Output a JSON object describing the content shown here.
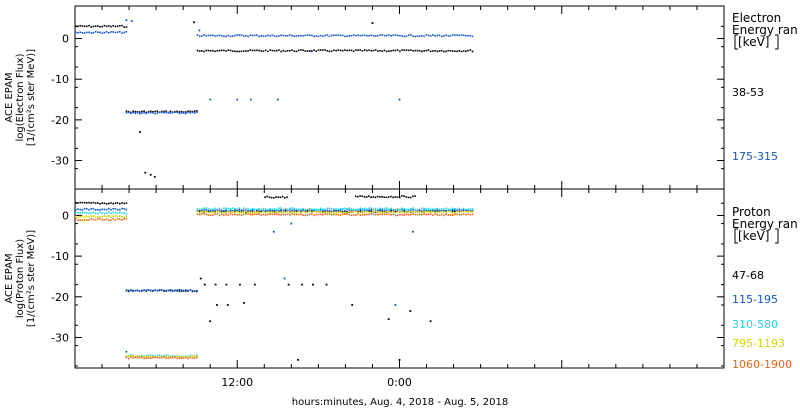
{
  "colors": {
    "frame": "#000000",
    "background": "#ffffff"
  },
  "time_axis": {
    "tick_labels": [
      "12:00",
      "0:00"
    ],
    "xlabel": "hours:minutes, Aug.  4, 2018 - Aug.  5, 2018"
  },
  "chart_data": [
    {
      "type": "scatter",
      "panel": "electron",
      "ylabel_lines": [
        "ACE EPAM",
        "log(Electron Flux)",
        "[1/(cm²s ster MeV)]"
      ],
      "legend_title_lines": [
        "Electron",
        "Energy ran",
        "[keV]"
      ],
      "legend_placement": "right",
      "yticks": [
        0,
        -10,
        -20,
        -30
      ],
      "ylim": [
        -37,
        8
      ],
      "xlim_hours": [
        0,
        48
      ],
      "grid": false,
      "series": [
        {
          "name": "38-53",
          "color": "#000000",
          "segments": [
            {
              "from": 0,
              "to": 3.75,
              "value": 3.0
            },
            {
              "from": 3.75,
              "to": 9.0,
              "value": -18.0
            },
            {
              "from": 9.0,
              "to": 29.5,
              "value": -3.0
            }
          ],
          "points": [
            [
              5.2,
              -33.0
            ],
            [
              5.6,
              -33.5
            ],
            [
              5.9,
              -34.0
            ],
            [
              4.8,
              -23.0
            ],
            [
              8.8,
              4.0
            ],
            [
              22.0,
              3.8
            ]
          ]
        },
        {
          "name": "175-315",
          "color": "#1155cc",
          "segments": [
            {
              "from": 0,
              "to": 3.75,
              "value": 1.5
            },
            {
              "from": 3.75,
              "to": 9.0,
              "value": -18.3
            },
            {
              "from": 9.0,
              "to": 29.5,
              "value": 0.7
            }
          ],
          "points": [
            [
              10.0,
              -15.0
            ],
            [
              12.0,
              -15.0
            ],
            [
              13.0,
              -15.0
            ],
            [
              15.0,
              -15.0
            ],
            [
              24.0,
              -15.0
            ],
            [
              3.8,
              4.5
            ],
            [
              4.2,
              4.3
            ],
            [
              9.2,
              2.0
            ],
            [
              17.5,
              -3.0
            ]
          ]
        }
      ]
    },
    {
      "type": "scatter",
      "panel": "proton",
      "ylabel_lines": [
        "ACE EPAM",
        "log(Proton Flux)",
        "[1/(cm²s ster MeV)]"
      ],
      "legend_title_lines": [
        "Proton",
        "Energy ran",
        "[keV]"
      ],
      "legend_placement": "right",
      "yticks": [
        0,
        -10,
        -20,
        -30
      ],
      "ylim": [
        -37.5,
        6.5
      ],
      "xlim_hours": [
        0,
        48
      ],
      "grid": false,
      "series": [
        {
          "name": "47-68",
          "color": "#000000",
          "segments": [
            {
              "from": 0,
              "to": 3.75,
              "value": 3.0
            },
            {
              "from": 3.75,
              "to": 9.0,
              "value": -18.5
            },
            {
              "from": 9.0,
              "to": 29.5,
              "value": 1.0
            },
            {
              "from": 14.0,
              "to": 15.7,
              "value": 4.5
            },
            {
              "from": 20.7,
              "to": 25.2,
              "value": 4.6
            }
          ],
          "points": [
            [
              9.6,
              -17.0
            ],
            [
              10.4,
              -17.0
            ],
            [
              11.2,
              -17.0
            ],
            [
              12.2,
              -17.0
            ],
            [
              13.3,
              -17.0
            ],
            [
              15.8,
              -17.0
            ],
            [
              16.8,
              -17.0
            ],
            [
              17.6,
              -17.0
            ],
            [
              18.6,
              -17.0
            ],
            [
              10.5,
              -22.0
            ],
            [
              11.3,
              -22.0
            ],
            [
              12.5,
              -21.5
            ],
            [
              20.5,
              -22.0
            ],
            [
              24.8,
              -23.5
            ],
            [
              26.3,
              -26.0
            ],
            [
              10.0,
              -26.0
            ],
            [
              16.5,
              -35.5
            ],
            [
              24.0,
              -35.5
            ],
            [
              9.3,
              -15.5
            ],
            [
              23.2,
              -25.5
            ]
          ]
        },
        {
          "name": "115-195",
          "color": "#1155cc",
          "segments": [
            {
              "from": 0,
              "to": 3.75,
              "value": 1.5
            },
            {
              "from": 3.75,
              "to": 9.0,
              "value": -18.5
            },
            {
              "from": 9.0,
              "to": 29.5,
              "value": 1.3
            }
          ],
          "points": [
            [
              14.7,
              -4.0
            ],
            [
              25.0,
              -4.0
            ],
            [
              15.5,
              -15.5
            ],
            [
              23.7,
              -22.0
            ],
            [
              3.8,
              -33.5
            ],
            [
              16.0,
              -2.0
            ]
          ]
        },
        {
          "name": "310-580",
          "color": "#22d3ee",
          "segments": [
            {
              "from": 0,
              "to": 3.75,
              "value": 0.6
            },
            {
              "from": 3.75,
              "to": 9.0,
              "value": -34.5
            },
            {
              "from": 9.0,
              "to": 29.5,
              "value": 1.6
            }
          ],
          "points": []
        },
        {
          "name": "795-1193",
          "color": "#d4d400",
          "segments": [
            {
              "from": 0,
              "to": 3.75,
              "value": -0.3
            },
            {
              "from": 3.75,
              "to": 9.0,
              "value": -34.7
            },
            {
              "from": 9.0,
              "to": 29.5,
              "value": 0.8
            }
          ],
          "points": []
        },
        {
          "name": "1060-1900",
          "color": "#e8661a",
          "segments": [
            {
              "from": 0,
              "to": 3.75,
              "value": -1.0
            },
            {
              "from": 3.75,
              "to": 9.0,
              "value": -35.0
            },
            {
              "from": 9.0,
              "to": 29.5,
              "value": 0.2
            }
          ],
          "points": []
        }
      ]
    }
  ]
}
